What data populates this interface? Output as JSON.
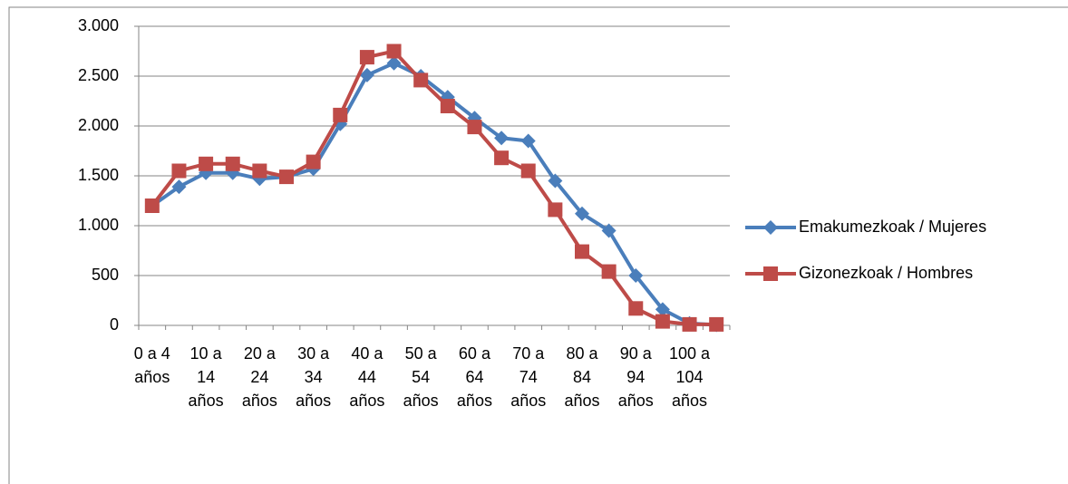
{
  "chart_data": {
    "type": "line",
    "categories": [
      "0 a 4 años",
      null,
      "10 a 14 años",
      null,
      "20 a 24 años",
      null,
      "30 a 34 años",
      null,
      "40 a 44 años",
      null,
      "50 a 54 años",
      null,
      "60 a 64 años",
      null,
      "70 a 74 años",
      null,
      "80 a 84 años",
      null,
      "90 a 94 años",
      null,
      "100 a 104 años",
      null
    ],
    "series": [
      {
        "name": "Emakumezkoak / Mujeres",
        "color": "#4a7ebb",
        "marker": "diamond",
        "values": [
          1200,
          1390,
          1530,
          1530,
          1470,
          1490,
          1570,
          2020,
          2510,
          2630,
          2500,
          2290,
          2080,
          1880,
          1850,
          1450,
          1120,
          950,
          500,
          160,
          20,
          5
        ]
      },
      {
        "name": "Gizonezkoak / Hombres",
        "color": "#be4b48",
        "marker": "square",
        "values": [
          1200,
          1550,
          1620,
          1620,
          1550,
          1490,
          1640,
          2110,
          2690,
          2750,
          2460,
          2200,
          1990,
          1680,
          1550,
          1160,
          740,
          540,
          170,
          40,
          10,
          10
        ]
      }
    ],
    "ylim": [
      0,
      3000
    ],
    "yticks": [
      0,
      500,
      {
        "value": 1000,
        "label": "1.000"
      },
      {
        "value": 1500,
        "label": "1.500"
      },
      {
        "value": 2000,
        "label": "2.000"
      },
      {
        "value": 2500,
        "label": "2.500"
      },
      {
        "value": 3000,
        "label": "3.000"
      }
    ],
    "grid": true,
    "legend": "right"
  }
}
